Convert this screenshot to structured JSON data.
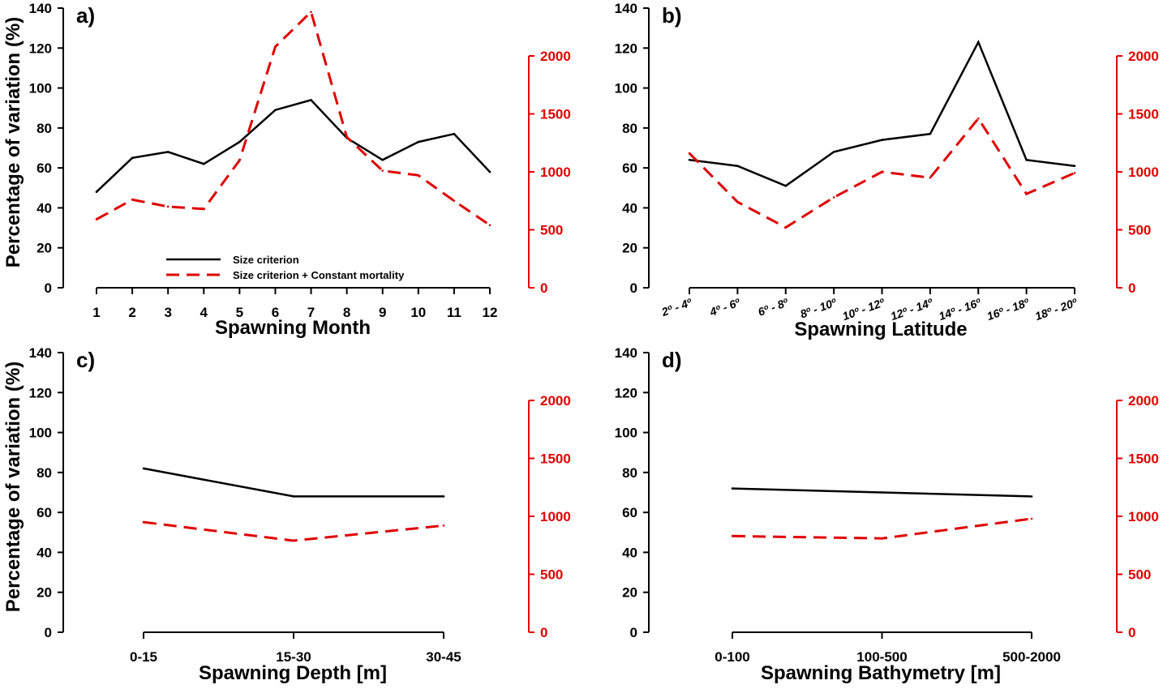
{
  "legend": {
    "series1": "Size criterion",
    "series2": "Size criterion + Constant mortality",
    "color1": "#000000",
    "color2": "#e00000"
  },
  "chart_data": [
    {
      "type": "line",
      "panel_label": "a)",
      "xlabel": "Spawning Month",
      "ylabel": "Percentage of variation (%)",
      "categories": [
        "1",
        "2",
        "3",
        "4",
        "5",
        "6",
        "7",
        "8",
        "9",
        "10",
        "11",
        "12"
      ],
      "ylim": [
        0,
        140
      ],
      "yticks": [
        "0",
        "20",
        "40",
        "60",
        "80",
        "100",
        "120",
        "140"
      ],
      "y2lim": [
        0,
        2000
      ],
      "y2ticks": [
        "0",
        "500",
        "1000",
        "1500",
        "2000"
      ],
      "series": [
        {
          "name": "Size criterion",
          "axis": "left",
          "style": "solid",
          "values": [
            48,
            65,
            68,
            62,
            73,
            89,
            94,
            75,
            64,
            73,
            77,
            58
          ]
        },
        {
          "name": "Size criterion + Constant mortality",
          "axis": "right",
          "style": "dashed",
          "values": [
            590,
            760,
            700,
            680,
            1100,
            2080,
            2380,
            1300,
            1010,
            970,
            750,
            540
          ]
        }
      ],
      "legend_position": "bottom-left"
    },
    {
      "type": "line",
      "panel_label": "b)",
      "xlabel": "Spawning Latitude",
      "ylabel": "",
      "categories": [
        "2º - 4º",
        "4º - 6º",
        "6º - 8º",
        "8º - 10º",
        "10º - 12º",
        "12º - 14º",
        "14º - 16º",
        "16º - 18º",
        "18º - 20º"
      ],
      "ylim": [
        0,
        140
      ],
      "yticks": [
        "0",
        "20",
        "40",
        "60",
        "80",
        "100",
        "120",
        "140"
      ],
      "y2lim": [
        0,
        2000
      ],
      "y2ticks": [
        "0",
        "500",
        "1000",
        "1500",
        "2000"
      ],
      "series": [
        {
          "name": "Size criterion",
          "axis": "left",
          "style": "solid",
          "values": [
            64,
            61,
            51,
            68,
            74,
            77,
            123,
            64,
            61
          ]
        },
        {
          "name": "Size criterion + Constant mortality",
          "axis": "right",
          "style": "dashed",
          "values": [
            1160,
            740,
            520,
            780,
            1000,
            950,
            1460,
            810,
            990
          ]
        }
      ]
    },
    {
      "type": "line",
      "panel_label": "c)",
      "xlabel": "Spawning Depth [m]",
      "ylabel": "Percentage of variation (%)",
      "categories": [
        "0-15",
        "15-30",
        "30-45"
      ],
      "ylim": [
        0,
        140
      ],
      "yticks": [
        "0",
        "20",
        "40",
        "60",
        "80",
        "100",
        "120",
        "140"
      ],
      "y2lim": [
        0,
        2000
      ],
      "y2ticks": [
        "0",
        "500",
        "1000",
        "1500",
        "2000"
      ],
      "series": [
        {
          "name": "Size criterion",
          "axis": "left",
          "style": "solid",
          "values": [
            82,
            68,
            68
          ]
        },
        {
          "name": "Size criterion + Constant mortality",
          "axis": "right",
          "style": "dashed",
          "values": [
            950,
            790,
            920
          ]
        }
      ]
    },
    {
      "type": "line",
      "panel_label": "d)",
      "xlabel": "Spawning Bathymetry [m]",
      "ylabel": "",
      "categories": [
        "0-100",
        "100-500",
        "500-2000"
      ],
      "ylim": [
        0,
        140
      ],
      "yticks": [
        "0",
        "20",
        "40",
        "60",
        "80",
        "100",
        "120",
        "140"
      ],
      "y2lim": [
        0,
        2000
      ],
      "y2ticks": [
        "0",
        "500",
        "1000",
        "1500",
        "2000"
      ],
      "series": [
        {
          "name": "Size criterion",
          "axis": "left",
          "style": "solid",
          "values": [
            72,
            70,
            68
          ]
        },
        {
          "name": "Size criterion + Constant mortality",
          "axis": "right",
          "style": "dashed",
          "values": [
            830,
            810,
            980
          ]
        }
      ]
    }
  ]
}
